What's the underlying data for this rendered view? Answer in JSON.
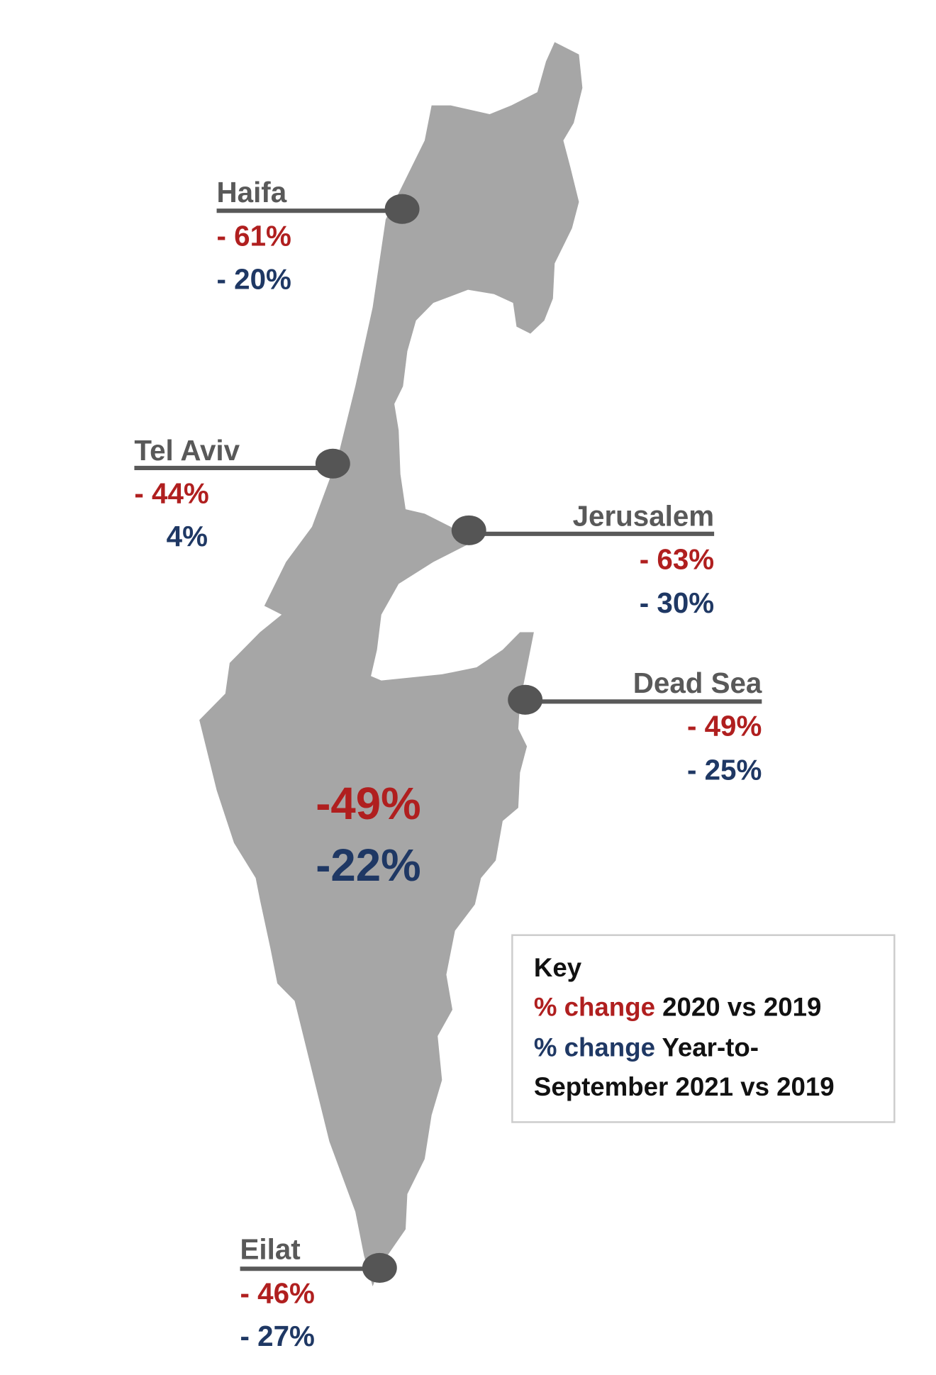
{
  "colors": {
    "map": "#a6a6a6",
    "marker": "#555555",
    "change_2020": "#b01f1f",
    "change_2021": "#1f3864",
    "label": "#595959"
  },
  "national": {
    "change_2020": "-49%",
    "change_2021": "-22%"
  },
  "cities": [
    {
      "name": "Haifa",
      "change_2020": "- 61%",
      "change_2021": "- 20%"
    },
    {
      "name": "Tel Aviv",
      "change_2020": "- 44%",
      "change_2021": "4%"
    },
    {
      "name": "Jerusalem",
      "change_2020": "- 63%",
      "change_2021": "- 30%"
    },
    {
      "name": "Dead Sea",
      "change_2020": "- 49%",
      "change_2021": "- 25%"
    },
    {
      "name": "Eilat",
      "change_2020": "- 46%",
      "change_2021": "- 27%"
    }
  ],
  "key": {
    "title": "Key",
    "line1_colored": "% change",
    "line1_rest": " 2020 vs 2019",
    "line2_colored": "% change",
    "line2_rest": " Year-to-",
    "line3": "September 2021 vs 2019"
  }
}
